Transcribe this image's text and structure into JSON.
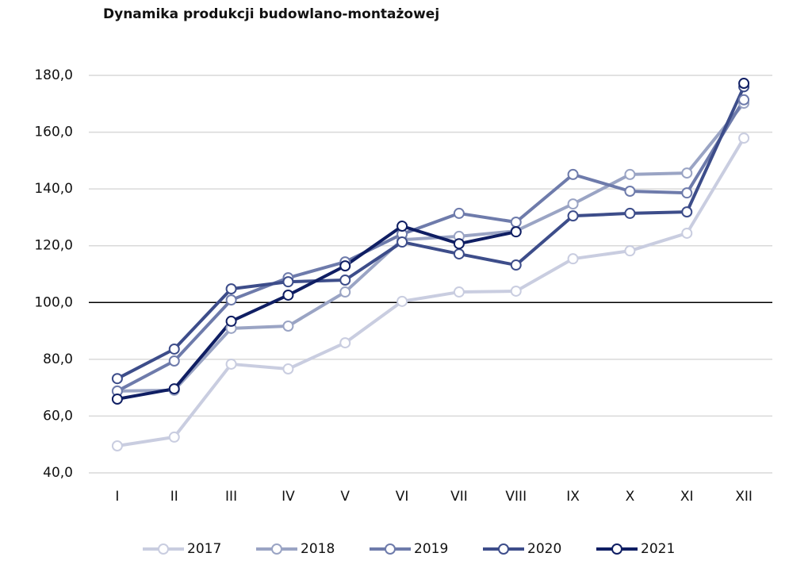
{
  "chart_data": {
    "type": "line",
    "title": "Dynamika produkcji budowlano-montażowej",
    "categories": [
      "I",
      "II",
      "III",
      "IV",
      "V",
      "VI",
      "VII",
      "VIII",
      "IX",
      "X",
      "XI",
      "XII"
    ],
    "series": [
      {
        "name": "2017",
        "color": "#c9cde0",
        "values": [
          49.5,
          52.6,
          78.3,
          76.6,
          85.8,
          100.4,
          103.7,
          104.0,
          115.4,
          118.2,
          124.4,
          157.9
        ]
      },
      {
        "name": "2018",
        "color": "#9aa4c4",
        "values": [
          68.8,
          69.1,
          90.9,
          91.7,
          103.7,
          122.1,
          123.3,
          125.2,
          134.7,
          145.1,
          145.6,
          170.2
        ]
      },
      {
        "name": "2019",
        "color": "#6e7bab",
        "values": [
          68.8,
          79.4,
          100.9,
          108.7,
          114.3,
          124.1,
          131.4,
          128.3,
          145.1,
          139.2,
          138.6,
          171.4
        ]
      },
      {
        "name": "2020",
        "color": "#3d4d8a",
        "values": [
          73.2,
          83.6,
          104.8,
          107.3,
          107.9,
          121.3,
          117.1,
          113.2,
          130.5,
          131.4,
          131.9,
          176.0
        ]
      },
      {
        "name": "2021",
        "color": "#0f1e63",
        "values": [
          66.0,
          69.6,
          93.4,
          102.6,
          112.9,
          126.9,
          120.7,
          124.9,
          null,
          null,
          null,
          177.2
        ]
      }
    ],
    "ylim": [
      40,
      180
    ],
    "yticks": [
      {
        "value": 40,
        "label": "40,0"
      },
      {
        "value": 60,
        "label": "60,0"
      },
      {
        "value": 80,
        "label": "80,0"
      },
      {
        "value": 100,
        "label": "100,0"
      },
      {
        "value": 120,
        "label": "120,0"
      },
      {
        "value": 140,
        "label": "140,0"
      },
      {
        "value": 160,
        "label": "160,0"
      },
      {
        "value": 180,
        "label": "180,0"
      }
    ],
    "reference_line": 100,
    "grid": true,
    "legend": "bottom"
  }
}
